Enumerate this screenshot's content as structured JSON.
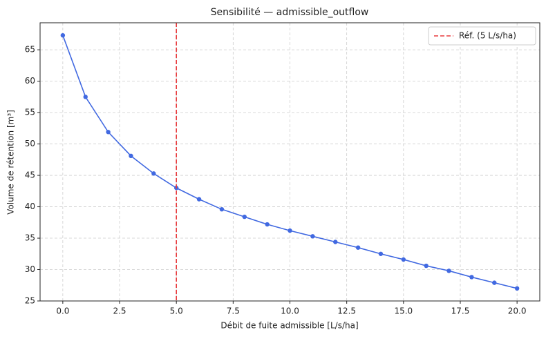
{
  "chart_data": {
    "type": "line",
    "title": "Sensibilité — admissible_outflow",
    "x_label": "Débit de fuite admissible [L/s/ha]",
    "y_label": "Volume de rétention [m³]",
    "x": [
      0,
      1,
      2,
      3,
      4,
      5,
      6,
      7,
      8,
      9,
      10,
      11,
      12,
      13,
      14,
      15,
      16,
      17,
      18,
      19,
      20
    ],
    "values": [
      67.3,
      57.5,
      51.9,
      48.1,
      45.3,
      43.0,
      41.2,
      39.6,
      38.4,
      37.2,
      36.2,
      35.3,
      34.4,
      33.5,
      32.5,
      31.6,
      30.6,
      29.8,
      28.8,
      27.9,
      27.0
    ],
    "color": "#4169e1",
    "reference_line": {
      "x": 5,
      "label": "Réf. (5 L/s/ha)",
      "color": "#e8393b"
    },
    "xlim": [
      -1.0,
      21.0
    ],
    "ylim": [
      25,
      69.3
    ],
    "xticks": [
      {
        "value": 0,
        "label": "0.0"
      },
      2.5,
      {
        "value": 5,
        "label": "5.0"
      },
      7.5,
      {
        "value": 10,
        "label": "10.0"
      },
      12.5,
      {
        "value": 15,
        "label": "15.0"
      },
      17.5,
      {
        "value": 20,
        "label": "20.0"
      }
    ],
    "yticks": [
      25,
      30,
      35,
      40,
      45,
      50,
      55,
      60,
      65
    ],
    "grid": true,
    "legend": "upper right"
  }
}
